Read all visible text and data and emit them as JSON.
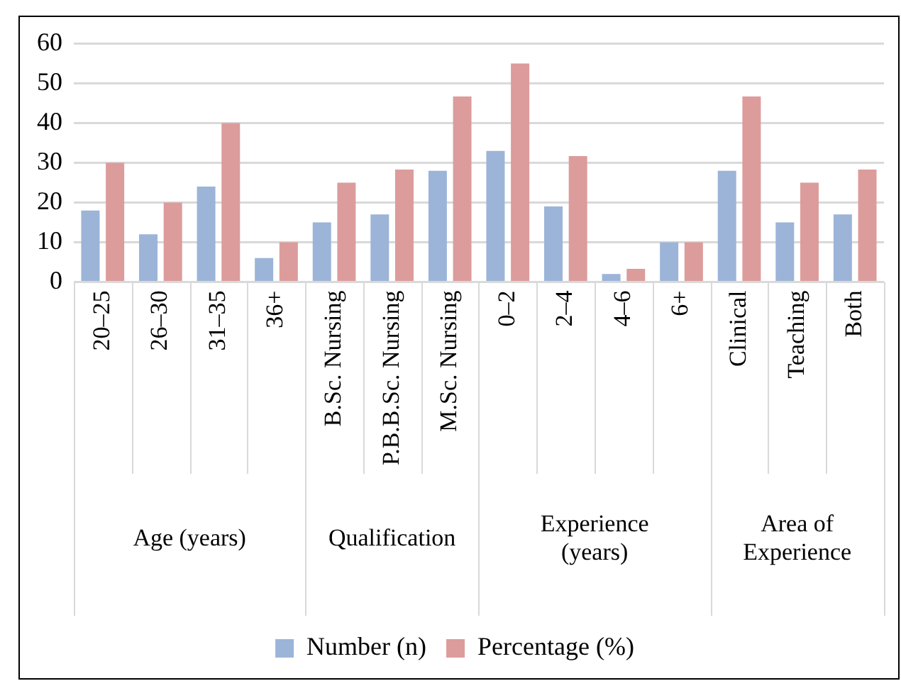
{
  "chart_data": {
    "type": "bar",
    "categories": [
      "20–25",
      "26–30",
      "31–35",
      "36+",
      "B.Sc. Nursing",
      "P.B.B.Sc. Nursing",
      "M.Sc. Nursing",
      "0–2",
      "2–4",
      "4–6",
      "6+",
      "Clinical",
      "Teaching",
      "Both"
    ],
    "series": [
      {
        "name": "Number (n)",
        "color": "#9cb4d8",
        "values": [
          18,
          12,
          24,
          6,
          15,
          17,
          28,
          33,
          19,
          2,
          10,
          28,
          15,
          17
        ]
      },
      {
        "name": "Percentage (%)",
        "color": "#dc9c9b",
        "values": [
          30,
          20,
          40,
          10,
          25,
          28.3,
          46.7,
          55,
          31.7,
          3.3,
          10,
          46.7,
          25,
          28.3
        ]
      }
    ],
    "annotations": [
      "Age (years)",
      "Qualification",
      "Experience (years)",
      "Area of Experience"
    ],
    "ylim": [
      0,
      60
    ],
    "yticks": [
      0,
      10,
      20,
      30,
      40,
      50,
      60
    ],
    "grid": "y",
    "legend": "bottom"
  }
}
